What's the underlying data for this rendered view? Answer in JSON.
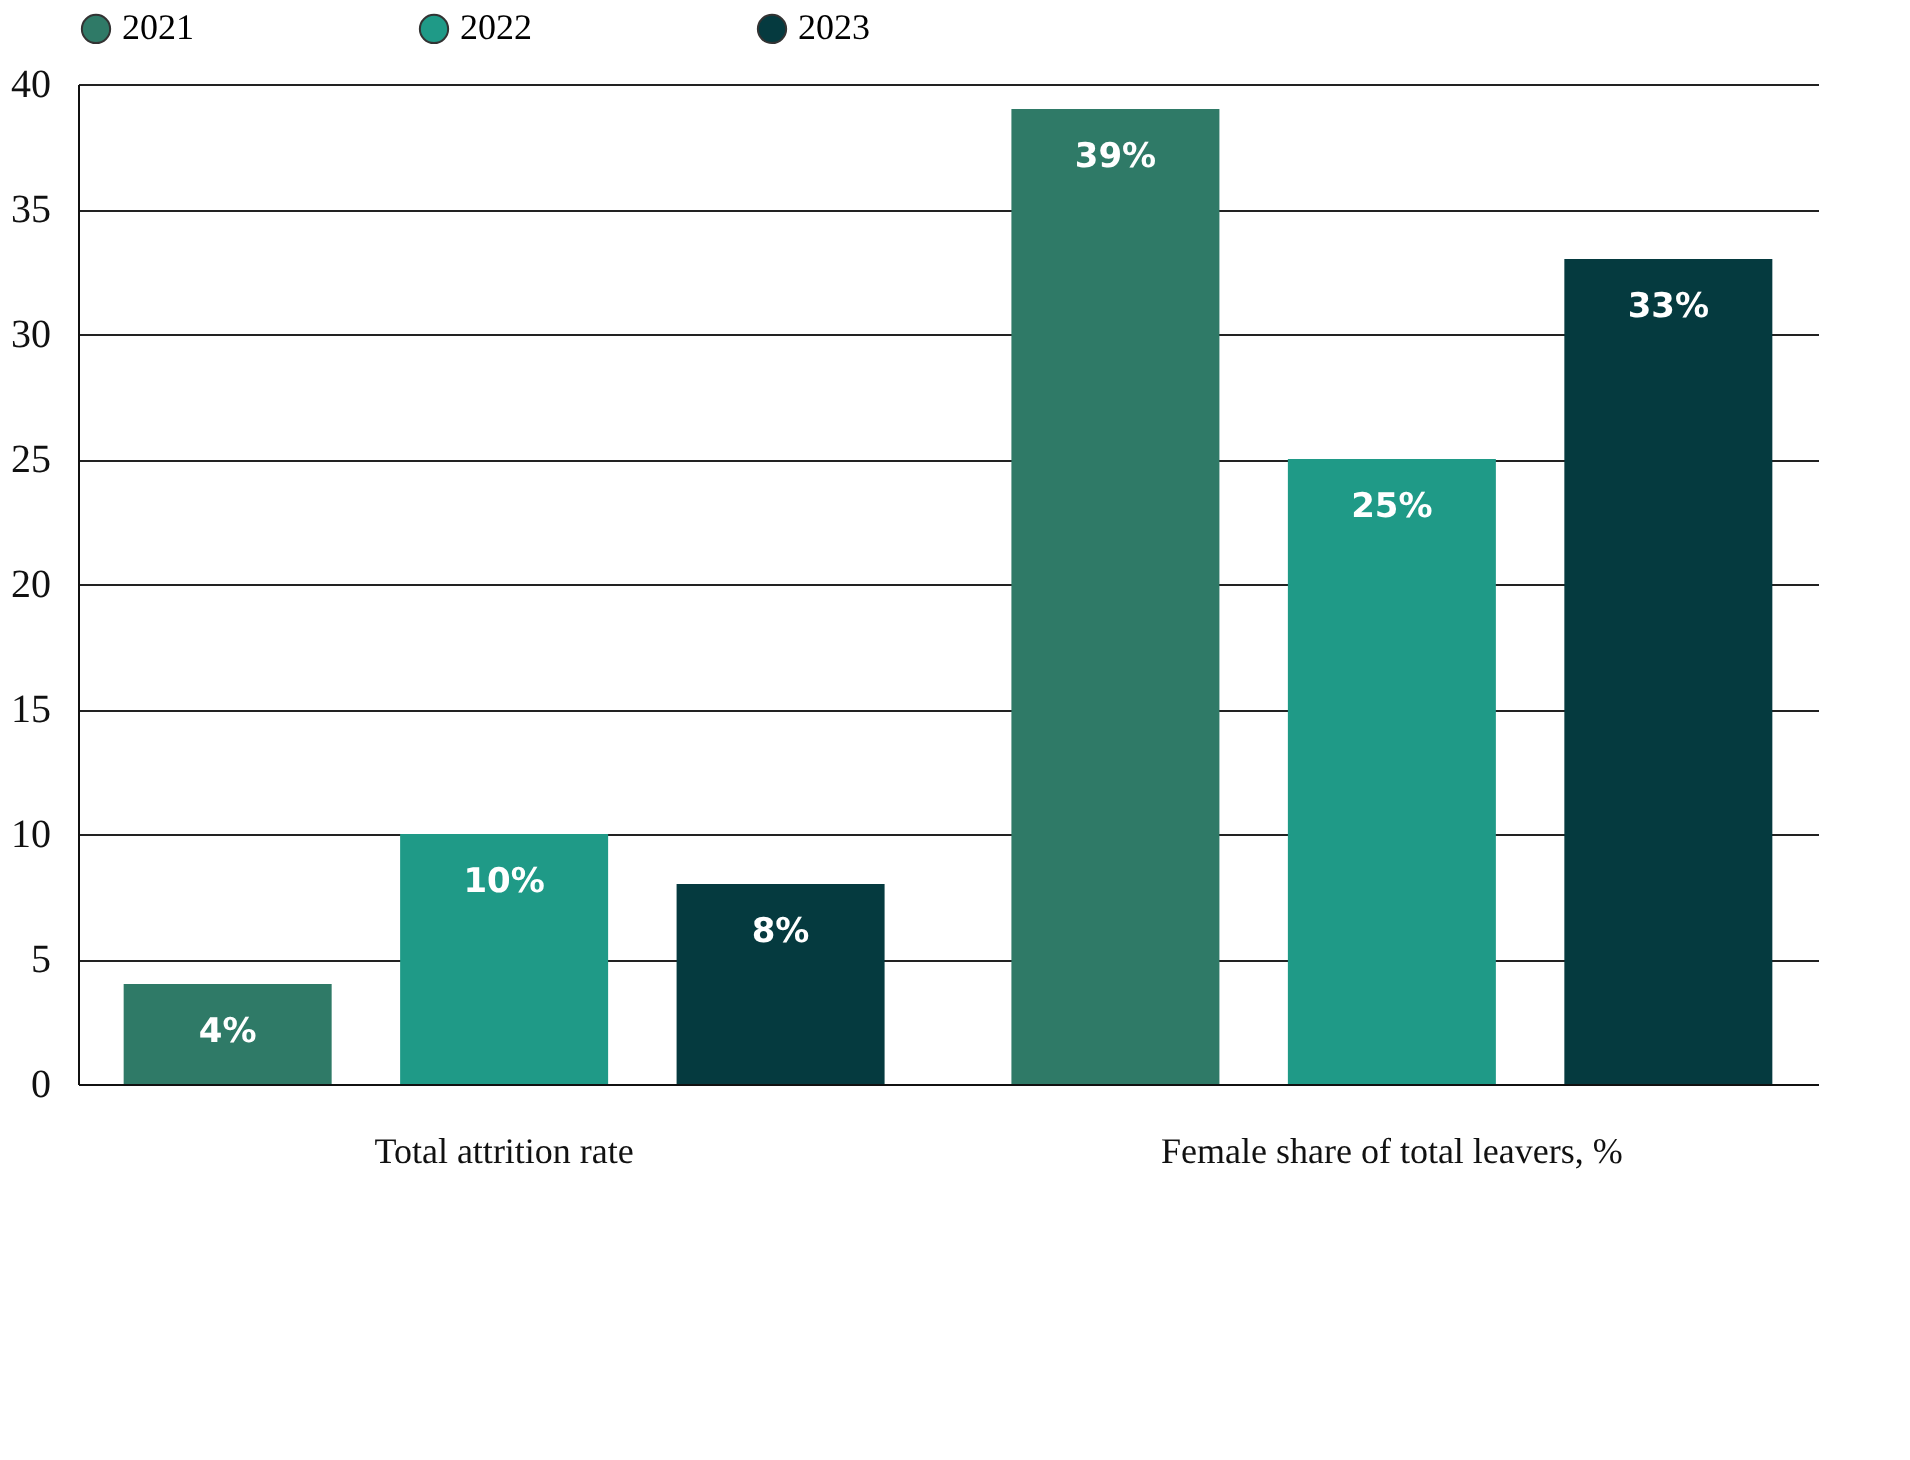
{
  "chart_data": {
    "type": "bar",
    "categories": [
      "Total attrition rate",
      "Female share of total leavers, %"
    ],
    "series": [
      {
        "name": "2021",
        "color": "#2f7a67",
        "values": [
          4,
          39
        ],
        "value_labels": [
          "4%",
          "39%"
        ]
      },
      {
        "name": "2022",
        "color": "#1f9a87",
        "values": [
          10,
          25
        ],
        "value_labels": [
          "10%",
          "25%"
        ]
      },
      {
        "name": "2023",
        "color": "#053a3f",
        "values": [
          8,
          33
        ],
        "value_labels": [
          "8%",
          "33%"
        ]
      }
    ],
    "ylim": [
      0,
      40
    ],
    "yticks": [
      0,
      5,
      10,
      15,
      20,
      25,
      30,
      35,
      40
    ],
    "grid": "y",
    "legend": "top"
  }
}
